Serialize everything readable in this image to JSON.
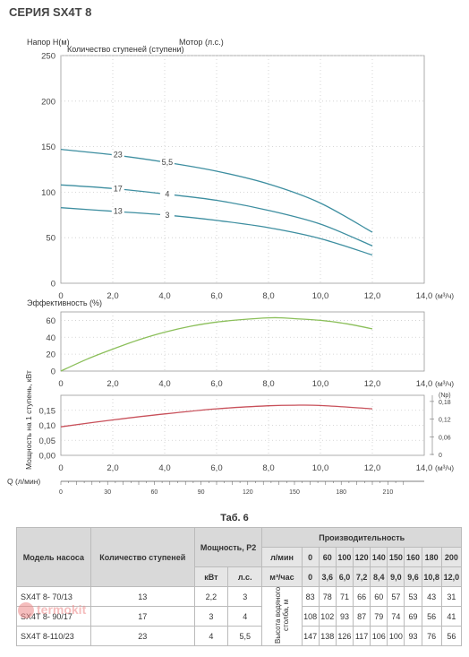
{
  "header": {
    "title": "СЕРИЯ SX4T 8"
  },
  "charts": {
    "head": {
      "ylabel": "Напор H(м)",
      "stages_label": "Количество ступеней (ступени)",
      "motor_label": "Мотор (л.с.)"
    },
    "efficiency": {
      "ylabel": "Эффективность (%)"
    },
    "power": {
      "ylabel": "Мощность на 1 ступень, кВт",
      "right_label": "(Np)"
    },
    "x_unit": "(м³/ч)",
    "q_label": "Q (л/мин)"
  },
  "chart_data": [
    {
      "type": "line",
      "title": "",
      "ylabel": "Напор H(м)",
      "xlabel": "(м³/ч)",
      "xlim": [
        0,
        14
      ],
      "ylim": [
        0,
        250
      ],
      "x_ticks": [
        "0",
        "2,0",
        "4,0",
        "6,0",
        "8,0",
        "10,0",
        "12,0",
        "14,0"
      ],
      "y_ticks": [
        "0",
        "50",
        "100",
        "150",
        "200",
        "250"
      ],
      "grid": true,
      "series": [
        {
          "name": "23",
          "motor": "5,5",
          "x": [
            0,
            2,
            4,
            6,
            8,
            10,
            12
          ],
          "y": [
            147,
            141,
            133,
            123,
            109,
            88,
            56
          ]
        },
        {
          "name": "17",
          "motor": "4",
          "x": [
            0,
            2,
            4,
            6,
            8,
            10,
            12
          ],
          "y": [
            108,
            104,
            98,
            91,
            80,
            65,
            41
          ]
        },
        {
          "name": "13",
          "motor": "3",
          "x": [
            0,
            2,
            4,
            6,
            8,
            10,
            12
          ],
          "y": [
            83,
            79,
            75,
            69,
            61,
            49,
            31
          ]
        }
      ],
      "color": "#3d8ea0"
    },
    {
      "type": "line",
      "title": "",
      "ylabel": "Эффективность (%)",
      "xlim": [
        0,
        14
      ],
      "ylim": [
        0,
        70
      ],
      "x_ticks": [
        "0",
        "2,0",
        "4,0",
        "6,0",
        "8,0",
        "10,0",
        "12,0",
        "14,0"
      ],
      "y_ticks": [
        "0",
        "20",
        "40",
        "60"
      ],
      "grid": true,
      "series": [
        {
          "x": [
            0,
            1,
            2,
            3,
            4,
            5,
            6,
            7,
            8,
            8.5,
            9,
            10,
            11,
            12
          ],
          "y": [
            0,
            14,
            26,
            37,
            46,
            53,
            58,
            61,
            63,
            63,
            62,
            60,
            56,
            50
          ]
        }
      ],
      "color": "#8bbf5a"
    },
    {
      "type": "line",
      "title": "",
      "ylabel": "Мощность на 1 ступень, кВт",
      "xlim": [
        0,
        14
      ],
      "ylim": [
        0,
        0.2
      ],
      "x_ticks": [
        "0",
        "2,0",
        "4,0",
        "6,0",
        "8,0",
        "10,0",
        "12,0",
        "14,0"
      ],
      "y_ticks": [
        "0,00",
        "0,05",
        "0,10",
        "0,15"
      ],
      "right_ticks": [
        "0",
        "0,06",
        "0,12",
        "0,18"
      ],
      "right_label": "(Np)",
      "grid": true,
      "series": [
        {
          "x": [
            0,
            2,
            4,
            6,
            8,
            9,
            10,
            12
          ],
          "y": [
            0.095,
            0.118,
            0.138,
            0.155,
            0.165,
            0.167,
            0.166,
            0.155
          ]
        }
      ],
      "color": "#c8505a",
      "q_ticks": [
        "0",
        "30",
        "60",
        "90",
        "120",
        "150",
        "180",
        "210"
      ],
      "q_label": "Q (л/мин)"
    }
  ],
  "table": {
    "caption": "Таб. 6",
    "h_model": "Модель насоса",
    "h_stages": "Количество ступеней",
    "h_power": "Мощность, P2",
    "h_kw": "кВт",
    "h_hp": "л.с.",
    "h_perf": "Производительность",
    "h_lmin": "л/мин",
    "h_m3h": "м³/час",
    "h_head": "Высота водяного столба, м",
    "lmin": [
      "0",
      "60",
      "100",
      "120",
      "140",
      "150",
      "160",
      "180",
      "200"
    ],
    "m3h": [
      "0",
      "3,6",
      "6,0",
      "7,2",
      "8,4",
      "9,0",
      "9,6",
      "10,8",
      "12,0"
    ],
    "rows": [
      {
        "model": "SX4T 8- 70/13",
        "stages": "13",
        "kw": "2,2",
        "hp": "3",
        "vals": [
          "83",
          "78",
          "71",
          "66",
          "60",
          "57",
          "53",
          "43",
          "31"
        ]
      },
      {
        "model": "SX4T 8- 90/17",
        "stages": "17",
        "kw": "3",
        "hp": "4",
        "vals": [
          "108",
          "102",
          "93",
          "87",
          "79",
          "74",
          "69",
          "56",
          "41"
        ]
      },
      {
        "model": "SX4T 8-110/23",
        "stages": "23",
        "kw": "4",
        "hp": "5,5",
        "vals": [
          "147",
          "138",
          "126",
          "117",
          "106",
          "100",
          "93",
          "76",
          "56"
        ]
      }
    ]
  },
  "watermark": {
    "text": "termokit"
  }
}
